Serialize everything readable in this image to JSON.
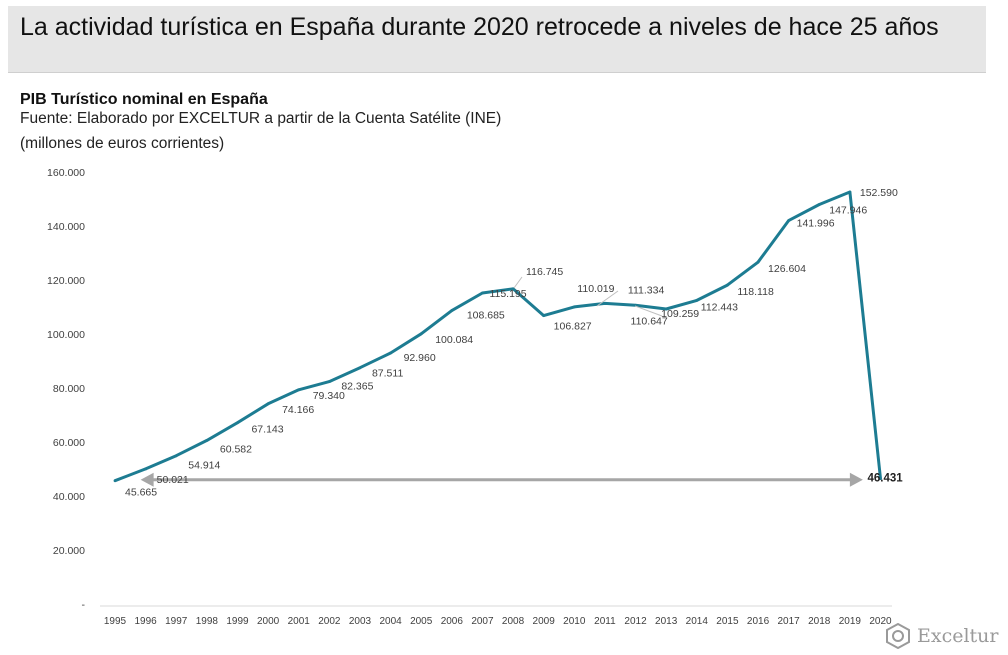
{
  "header": {
    "title": "La actividad turística en España durante 2020 retrocede a niveles de hace 25 años"
  },
  "subtitle": "PIB Turístico nominal en España",
  "source": "Fuente: Elaborado por EXCELTUR a partir de la Cuenta Satélite (INE)",
  "units": "(millones de euros corrientes)",
  "logo": {
    "text": "Exceltur",
    "icon": "exceltur-logo-icon"
  },
  "colors": {
    "line": "#1d7c92",
    "arrow": "#a6a6a6",
    "label": "#404040",
    "axis": "#d9d9d9"
  },
  "chart_data": {
    "type": "line",
    "title": "PIB Turístico nominal en España",
    "xlabel": "",
    "ylabel": "",
    "ylim": [
      0,
      160000
    ],
    "yticks": [
      0,
      20000,
      40000,
      60000,
      80000,
      100000,
      120000,
      140000,
      160000
    ],
    "ytick_labels": [
      "-",
      "20.000",
      "40.000",
      "60.000",
      "80.000",
      "100.000",
      "120.000",
      "140.000",
      "160.000"
    ],
    "grid": false,
    "categories": [
      "1995",
      "1996",
      "1997",
      "1998",
      "1999",
      "2000",
      "2001",
      "2002",
      "2003",
      "2004",
      "2005",
      "2006",
      "2007",
      "2008",
      "2009",
      "2010",
      "2011",
      "2012",
      "2013",
      "2014",
      "2015",
      "2016",
      "2017",
      "2018",
      "2019",
      "2020"
    ],
    "series": [
      {
        "name": "PIB Turístico nominal",
        "values": [
          45665,
          50021,
          54914,
          60582,
          67143,
          74166,
          79340,
          82365,
          87511,
          92960,
          100084,
          108685,
          115195,
          116745,
          106827,
          110019,
          111334,
          110647,
          109259,
          112443,
          118118,
          126604,
          141996,
          147946,
          152590,
          46431
        ],
        "labels": [
          "45.665",
          "50.021",
          "54.914",
          "60.582",
          "67.143",
          "74.166",
          "79.340",
          "82.365",
          "87.511",
          "92.960",
          "100.084",
          "108.685",
          "115.195",
          "116.745",
          "106.827",
          "110.019",
          "111.334",
          "110.647",
          "109.259",
          "112.443",
          "118.118",
          "126.604",
          "141.996",
          "147.946",
          "152.590",
          "46.431"
        ]
      }
    ],
    "annotation": {
      "type": "double-arrow",
      "from": "1996",
      "to": "2019",
      "value": 46000
    }
  }
}
